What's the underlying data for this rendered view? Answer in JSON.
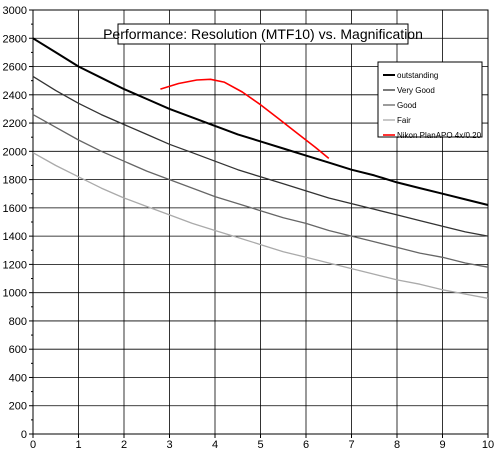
{
  "chart_data": {
    "type": "line",
    "title": "Performance: Resolution (MTF10) vs. Magnification",
    "xlabel": "",
    "ylabel": "",
    "xlim": [
      0,
      10
    ],
    "ylim": [
      0,
      3000
    ],
    "x_ticks": [
      0,
      1,
      2,
      3,
      4,
      5,
      6,
      7,
      8,
      9,
      10
    ],
    "y_ticks": [
      0,
      200,
      400,
      600,
      800,
      1000,
      1200,
      1400,
      1600,
      1800,
      2000,
      2200,
      2400,
      2600,
      2800,
      3000
    ],
    "grid": true,
    "legend_position": "top-right",
    "series": [
      {
        "name": "outstanding",
        "color": "#000000",
        "x": [
          0,
          0.5,
          1,
          1.5,
          2,
          2.5,
          3,
          3.5,
          4,
          4.5,
          5,
          5.5,
          6,
          6.5,
          7,
          7.5,
          8,
          8.5,
          9,
          9.5,
          10
        ],
        "y": [
          2800,
          2700,
          2600,
          2520,
          2440,
          2370,
          2300,
          2240,
          2180,
          2120,
          2070,
          2020,
          1970,
          1920,
          1870,
          1830,
          1780,
          1740,
          1700,
          1660,
          1620
        ]
      },
      {
        "name": "Very Good",
        "color": "#333333",
        "x": [
          0,
          0.5,
          1,
          1.5,
          2,
          2.5,
          3,
          3.5,
          4,
          4.5,
          5,
          5.5,
          6,
          6.5,
          7,
          7.5,
          8,
          8.5,
          9,
          9.5,
          10
        ],
        "y": [
          2530,
          2430,
          2340,
          2260,
          2190,
          2120,
          2050,
          1990,
          1930,
          1870,
          1820,
          1770,
          1720,
          1670,
          1630,
          1590,
          1550,
          1510,
          1470,
          1430,
          1400
        ]
      },
      {
        "name": "Good",
        "color": "#666666",
        "x": [
          0,
          0.5,
          1,
          1.5,
          2,
          2.5,
          3,
          3.5,
          4,
          4.5,
          5,
          5.5,
          6,
          6.5,
          7,
          7.5,
          8,
          8.5,
          9,
          9.5,
          10
        ],
        "y": [
          2260,
          2170,
          2080,
          2000,
          1930,
          1860,
          1800,
          1740,
          1680,
          1630,
          1580,
          1530,
          1490,
          1440,
          1400,
          1360,
          1320,
          1280,
          1250,
          1210,
          1180
        ]
      },
      {
        "name": "Fair",
        "color": "#aaaaaa",
        "x": [
          0,
          0.5,
          1,
          1.5,
          2,
          2.5,
          3,
          3.5,
          4,
          4.5,
          5,
          5.5,
          6,
          6.5,
          7,
          7.5,
          8,
          8.5,
          9,
          9.5,
          10
        ],
        "y": [
          1990,
          1900,
          1820,
          1740,
          1670,
          1610,
          1550,
          1490,
          1440,
          1390,
          1340,
          1290,
          1250,
          1210,
          1170,
          1130,
          1090,
          1060,
          1020,
          990,
          960
        ]
      },
      {
        "name": "Nikon PlanAPO 4x/0.20",
        "color": "#ff0000",
        "x": [
          2.8,
          3.2,
          3.6,
          3.9,
          4.2,
          4.6,
          5.0,
          5.4,
          5.8,
          6.2,
          6.5
        ],
        "y": [
          2440,
          2480,
          2505,
          2510,
          2490,
          2420,
          2330,
          2230,
          2130,
          2030,
          1950
        ]
      }
    ]
  }
}
